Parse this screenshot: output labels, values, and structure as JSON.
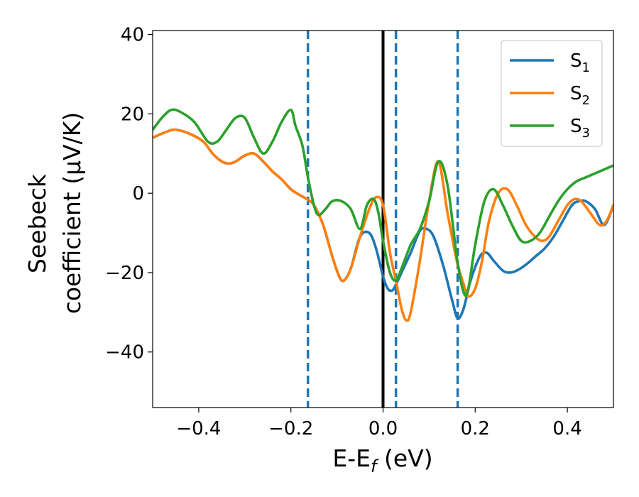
{
  "chart_data": {
    "type": "line",
    "xlabel": "E-E",
    "xlabel_sub": "f",
    "xlabel_unit": " (eV)",
    "ylabel_line1": "Seebeck",
    "ylabel_line2": "coefficient  (μV/K)",
    "xlim": [
      -0.5,
      0.5
    ],
    "ylim": [
      -54,
      41
    ],
    "xticks": [
      {
        "value": -0.4,
        "label": "−0.4"
      },
      {
        "value": -0.2,
        "label": "−0.2"
      },
      {
        "value": 0.0,
        "label": "0.0"
      },
      {
        "value": 0.2,
        "label": "0.2"
      },
      {
        "value": 0.4,
        "label": "0.4"
      }
    ],
    "yticks": [
      {
        "value": 40,
        "label": "40"
      },
      {
        "value": 20,
        "label": "20"
      },
      {
        "value": 0,
        "label": "0"
      },
      {
        "value": -20,
        "label": "−20"
      },
      {
        "value": -40,
        "label": "−40"
      }
    ],
    "legend": {
      "position": "top-right",
      "entries": [
        {
          "base": "S",
          "sub": "1",
          "color": "#1f77b4"
        },
        {
          "base": "S",
          "sub": "2",
          "color": "#ff7f0e"
        },
        {
          "base": "S",
          "sub": "3",
          "color": "#2ca02c"
        }
      ]
    },
    "vertical_lines": [
      {
        "x": -0.163,
        "style": "dashed",
        "color": "#1f77b4"
      },
      {
        "x": 0.0,
        "style": "solid",
        "color": "#000000"
      },
      {
        "x": 0.028,
        "style": "dashed",
        "color": "#1f77b4"
      },
      {
        "x": 0.162,
        "style": "dashed",
        "color": "#1f77b4"
      }
    ],
    "series": [
      {
        "name": "S₁",
        "color": "#1f77b4",
        "x": [
          -0.5,
          -0.47,
          -0.45,
          -0.42,
          -0.39,
          -0.37,
          -0.35,
          -0.335,
          -0.32,
          -0.3,
          -0.28,
          -0.26,
          -0.24,
          -0.22,
          -0.2,
          -0.18,
          -0.165,
          -0.15,
          -0.13,
          -0.11,
          -0.095,
          -0.085,
          -0.07,
          -0.05,
          -0.03,
          -0.015,
          0.0,
          0.01,
          0.02,
          0.028,
          0.04,
          0.06,
          0.08,
          0.095,
          0.11,
          0.13,
          0.15,
          0.162,
          0.175,
          0.19,
          0.21,
          0.225,
          0.24,
          0.26,
          0.275,
          0.29,
          0.31,
          0.33,
          0.35,
          0.37,
          0.39,
          0.41,
          0.425,
          0.44,
          0.46,
          0.48,
          0.5
        ],
        "y": [
          14,
          15.5,
          16,
          15,
          13,
          10,
          8,
          7.5,
          8,
          9.5,
          10,
          8,
          5.5,
          3.5,
          1,
          -0.5,
          -1.5,
          -3,
          -8,
          -16,
          -21,
          -22,
          -19,
          -11,
          -10,
          -14,
          -21,
          -24,
          -24.5,
          -23,
          -20,
          -15,
          -9.5,
          -9,
          -11,
          -18,
          -27,
          -31.5,
          -29,
          -22,
          -16,
          -15,
          -17,
          -19.5,
          -20,
          -19.5,
          -18,
          -16,
          -14,
          -11,
          -7,
          -3,
          -2,
          -2,
          -4,
          -8,
          -3
        ]
      },
      {
        "name": "S₂",
        "color": "#ff7f0e",
        "x": [
          -0.5,
          -0.47,
          -0.45,
          -0.42,
          -0.39,
          -0.37,
          -0.35,
          -0.335,
          -0.32,
          -0.3,
          -0.28,
          -0.26,
          -0.24,
          -0.22,
          -0.2,
          -0.18,
          -0.165,
          -0.15,
          -0.13,
          -0.11,
          -0.095,
          -0.085,
          -0.07,
          -0.05,
          -0.03,
          -0.015,
          0.0,
          0.015,
          0.028,
          0.04,
          0.05,
          0.06,
          0.08,
          0.1,
          0.12,
          0.14,
          0.16,
          0.175,
          0.185,
          0.2,
          0.215,
          0.23,
          0.25,
          0.27,
          0.29,
          0.31,
          0.33,
          0.345,
          0.36,
          0.38,
          0.4,
          0.415,
          0.43,
          0.45,
          0.47,
          0.485,
          0.5
        ],
        "y": [
          14,
          15.5,
          16,
          15,
          13,
          10,
          8,
          7.5,
          8,
          9.5,
          10,
          8,
          5.5,
          3.5,
          1,
          -0.5,
          -1.5,
          -3,
          -8,
          -16,
          -21,
          -22,
          -19,
          -11,
          -4,
          -1,
          -3,
          -15,
          -22,
          -29,
          -32,
          -30,
          -17,
          -2,
          8,
          -5,
          -17,
          -23,
          -26,
          -24,
          -17,
          -7,
          0,
          1,
          -3,
          -8,
          -11,
          -12,
          -11,
          -7,
          -3,
          -1.5,
          -2,
          -5,
          -8,
          -7,
          -3
        ]
      },
      {
        "name": "S₃",
        "color": "#2ca02c",
        "x": [
          -0.5,
          -0.48,
          -0.46,
          -0.44,
          -0.41,
          -0.38,
          -0.36,
          -0.34,
          -0.32,
          -0.3,
          -0.28,
          -0.26,
          -0.24,
          -0.22,
          -0.2,
          -0.19,
          -0.175,
          -0.163,
          -0.15,
          -0.14,
          -0.125,
          -0.11,
          -0.09,
          -0.07,
          -0.05,
          -0.035,
          -0.02,
          -0.01,
          0.0,
          0.015,
          0.028,
          0.04,
          0.06,
          0.08,
          0.1,
          0.12,
          0.14,
          0.16,
          0.175,
          0.185,
          0.2,
          0.22,
          0.24,
          0.26,
          0.28,
          0.3,
          0.32,
          0.34,
          0.36,
          0.38,
          0.4,
          0.42,
          0.44,
          0.46,
          0.48,
          0.5
        ],
        "y": [
          16,
          19,
          21,
          20.5,
          18,
          13,
          13,
          16,
          19,
          19,
          14,
          10,
          13,
          18,
          21,
          17,
          12,
          4,
          -3,
          -5.5,
          -4,
          -2,
          -2,
          -4,
          -9,
          -3,
          -1.5,
          -5,
          -12,
          -20,
          -22,
          -19,
          -13,
          -9,
          -2,
          8,
          2,
          -16,
          -25,
          -24,
          -13,
          -2,
          1,
          -3,
          -8,
          -12,
          -12,
          -10,
          -6,
          -2,
          1,
          3,
          4,
          5,
          6,
          7
        ]
      }
    ]
  }
}
